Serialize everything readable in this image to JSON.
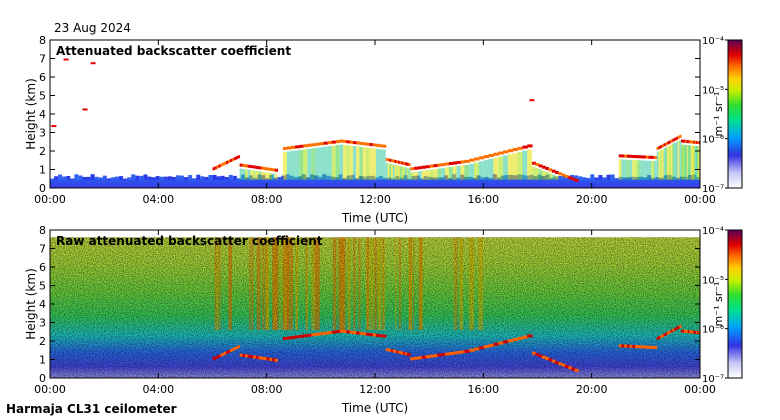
{
  "date": "23 Aug 2024",
  "instrument": "Harmaja CL31 ceilometer",
  "chart_data": [
    {
      "type": "heatmap",
      "title": "Attenuated backscatter coefficient",
      "xlabel": "Time (UTC)",
      "ylabel": "Height (km)",
      "xlim": [
        0,
        24
      ],
      "ylim": [
        0,
        8
      ],
      "x_ticks": [
        "00:00",
        "04:00",
        "08:00",
        "12:00",
        "16:00",
        "20:00",
        "00:00"
      ],
      "y_ticks": [
        "0",
        "1",
        "2",
        "3",
        "4",
        "5",
        "6",
        "7",
        "8"
      ],
      "colorbar": {
        "label": "m⁻¹ sr⁻¹",
        "ticks": [
          "10⁻⁴",
          "10⁻⁵",
          "10⁻⁶",
          "10⁻⁷"
        ],
        "range_log10": [
          -7,
          -4
        ]
      },
      "features": {
        "boundary_layer_top_km": 0.5,
        "elevated_layers": [
          {
            "t_start": 6.0,
            "t_end": 7.0,
            "h_start": 1.0,
            "h_end": 1.7
          },
          {
            "t_start": 7.0,
            "t_end": 8.4,
            "h_start": 1.2,
            "h_end": 0.9
          },
          {
            "t_start": 8.6,
            "t_end": 10.7,
            "h_start": 2.1,
            "h_end": 2.5
          },
          {
            "t_start": 10.7,
            "t_end": 12.4,
            "h_start": 2.5,
            "h_end": 2.2
          },
          {
            "t_start": 12.4,
            "t_end": 13.3,
            "h_start": 1.5,
            "h_end": 1.2
          },
          {
            "t_start": 13.3,
            "t_end": 15.3,
            "h_start": 1.0,
            "h_end": 1.4
          },
          {
            "t_start": 15.3,
            "t_end": 17.8,
            "h_start": 1.4,
            "h_end": 2.3
          },
          {
            "t_start": 17.8,
            "t_end": 19.5,
            "h_start": 1.3,
            "h_end": 0.3
          },
          {
            "t_start": 21.0,
            "t_end": 22.4,
            "h_start": 1.7,
            "h_end": 1.6
          },
          {
            "t_start": 22.4,
            "t_end": 23.3,
            "h_start": 2.1,
            "h_end": 2.8
          },
          {
            "t_start": 23.3,
            "t_end": 24.0,
            "h_start": 2.5,
            "h_end": 2.4
          }
        ],
        "high_clouds": [
          {
            "t": 0.5,
            "h": 7.0
          },
          {
            "t": 1.5,
            "h": 6.8
          },
          {
            "t": 1.2,
            "h": 4.3
          },
          {
            "t": 17.7,
            "h": 4.8
          },
          {
            "t": 0.05,
            "h": 3.4
          }
        ]
      }
    },
    {
      "type": "heatmap",
      "title": "Raw attenuated backscatter coefficient",
      "xlabel": "Time (UTC)",
      "ylabel": "Height (km)",
      "xlim": [
        0,
        24
      ],
      "ylim": [
        0,
        8
      ],
      "x_ticks": [
        "00:00",
        "04:00",
        "08:00",
        "12:00",
        "16:00",
        "20:00",
        "00:00"
      ],
      "y_ticks": [
        "0",
        "1",
        "2",
        "3",
        "4",
        "5",
        "6",
        "7",
        "8"
      ],
      "colorbar": {
        "label": "m⁻¹ sr⁻¹",
        "ticks": [
          "10⁻⁴",
          "10⁻⁵",
          "10⁻⁶",
          "10⁻⁷"
        ],
        "range_log10": [
          -7,
          -4
        ]
      }
    }
  ]
}
